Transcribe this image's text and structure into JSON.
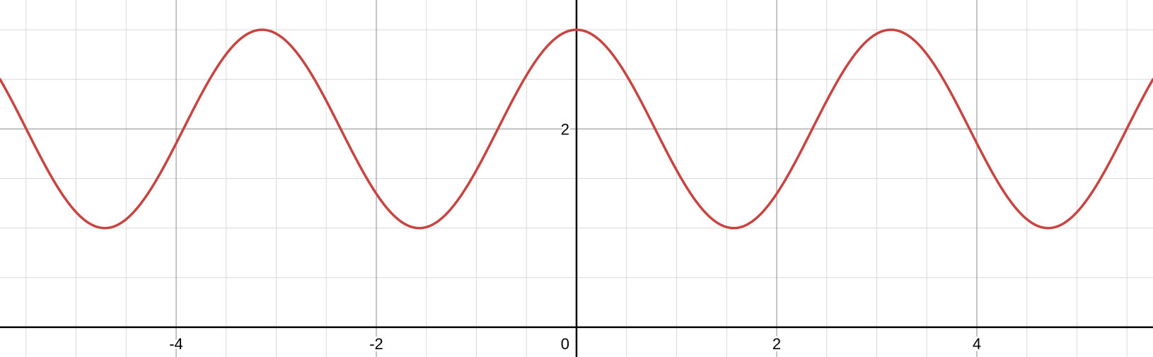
{
  "chart_data": {
    "type": "line",
    "title": "",
    "xlabel": "",
    "ylabel": "",
    "xlim": [
      -5.76,
      5.76
    ],
    "ylim": [
      -0.3,
      3.3
    ],
    "grid": true,
    "x_major_ticks": [
      {
        "value": -4,
        "label": "-4"
      },
      {
        "value": -2,
        "label": "-2"
      },
      {
        "value": 0,
        "label": "0"
      },
      {
        "value": 2,
        "label": "2"
      },
      {
        "value": 4,
        "label": "4"
      }
    ],
    "y_major_ticks": [
      {
        "value": 2,
        "label": "2"
      }
    ],
    "minor_step": 0.5,
    "series": [
      {
        "expression": "2 + cos(2x)",
        "color": "#c74440",
        "x": [
          -5.5,
          -5.0,
          -4.712,
          -4.5,
          -4.0,
          -3.5,
          -3.142,
          -3.0,
          -2.5,
          -2.0,
          -1.571,
          -1.5,
          -1.0,
          -0.5,
          0,
          0.5,
          1.0,
          1.5,
          1.571,
          2.0,
          2.5,
          3.0,
          3.142,
          3.5,
          4.0,
          4.5,
          4.712,
          5.0,
          5.5
        ],
        "y": [
          2.004,
          1.161,
          1.0,
          1.089,
          1.854,
          2.754,
          3.0,
          2.96,
          2.284,
          1.346,
          1.0,
          1.01,
          1.584,
          2.54,
          3.0,
          2.54,
          1.584,
          1.01,
          1.0,
          1.346,
          2.284,
          2.96,
          3.0,
          2.754,
          1.854,
          1.089,
          1.0,
          1.161,
          2.004
        ]
      }
    ]
  }
}
